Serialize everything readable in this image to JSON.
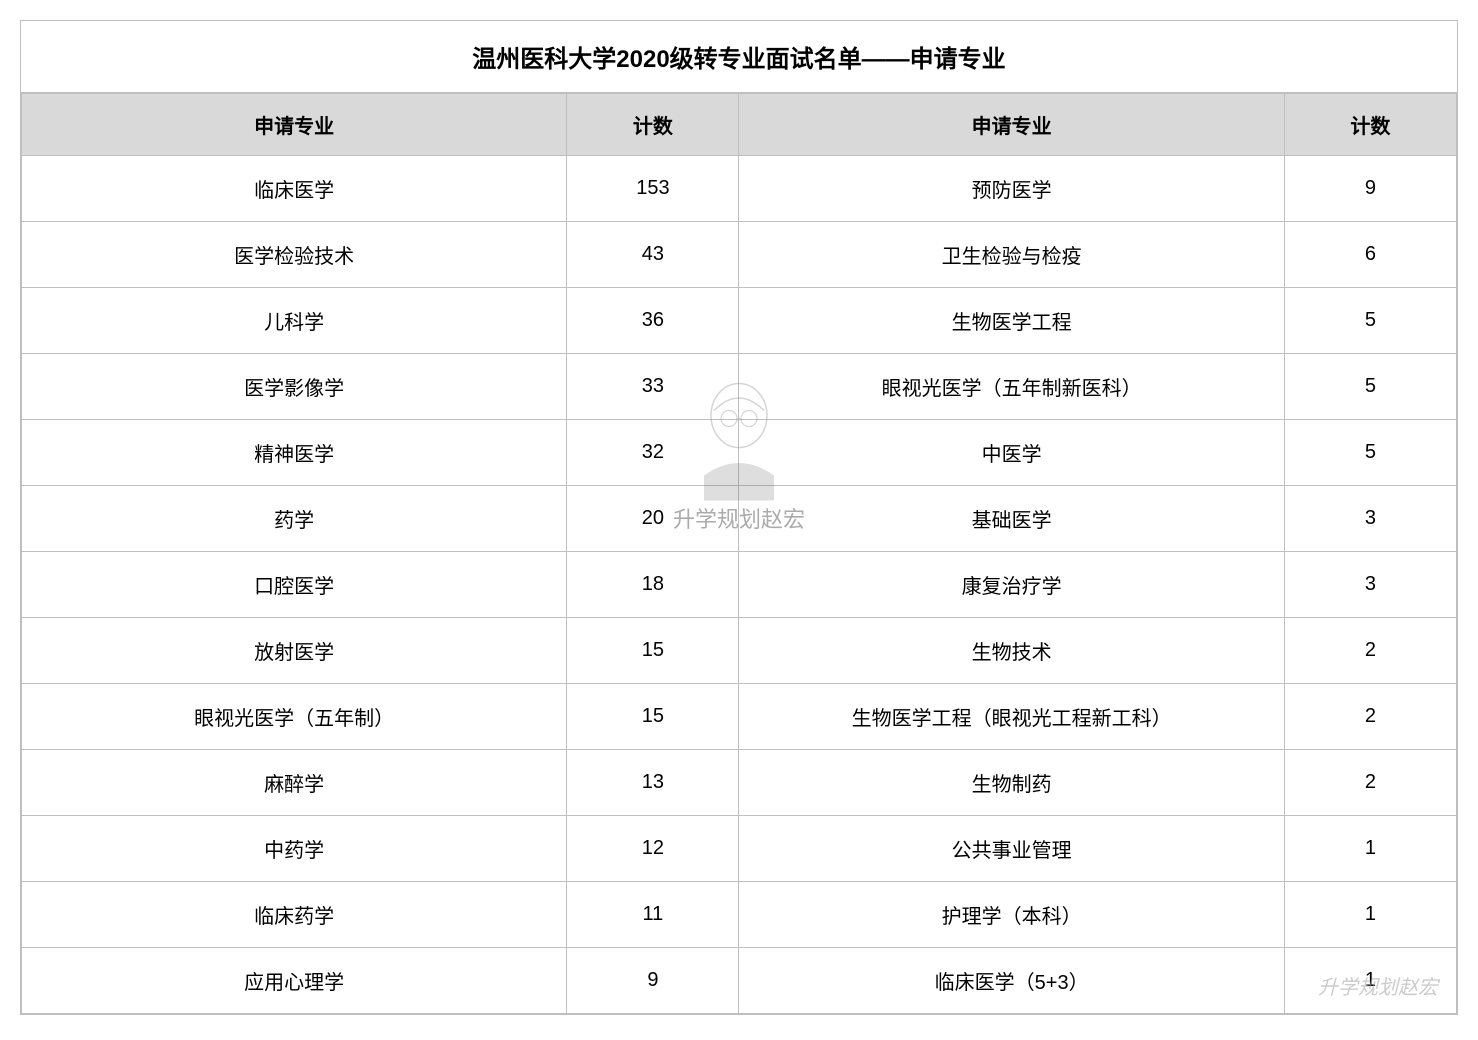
{
  "title": "温州医科大学2020级转专业面试名单——申请专业",
  "headers": {
    "major1": "申请专业",
    "count1": "计数",
    "major2": "申请专业",
    "count2": "计数"
  },
  "rows": [
    {
      "m1": "临床医学",
      "c1": "153",
      "m2": "预防医学",
      "c2": "9"
    },
    {
      "m1": "医学检验技术",
      "c1": "43",
      "m2": "卫生检验与检疫",
      "c2": "6"
    },
    {
      "m1": "儿科学",
      "c1": "36",
      "m2": "生物医学工程",
      "c2": "5"
    },
    {
      "m1": "医学影像学",
      "c1": "33",
      "m2": "眼视光医学（五年制新医科）",
      "c2": "5"
    },
    {
      "m1": "精神医学",
      "c1": "32",
      "m2": "中医学",
      "c2": "5"
    },
    {
      "m1": "药学",
      "c1": "20",
      "m2": "基础医学",
      "c2": "3"
    },
    {
      "m1": "口腔医学",
      "c1": "18",
      "m2": "康复治疗学",
      "c2": "3"
    },
    {
      "m1": "放射医学",
      "c1": "15",
      "m2": "生物技术",
      "c2": "2"
    },
    {
      "m1": "眼视光医学（五年制）",
      "c1": "15",
      "m2": "生物医学工程（眼视光工程新工科）",
      "c2": "2"
    },
    {
      "m1": "麻醉学",
      "c1": "13",
      "m2": "生物制药",
      "c2": "2"
    },
    {
      "m1": "中药学",
      "c1": "12",
      "m2": "公共事业管理",
      "c2": "1"
    },
    {
      "m1": "临床药学",
      "c1": "11",
      "m2": "护理学（本科）",
      "c2": "1"
    },
    {
      "m1": "应用心理学",
      "c1": "9",
      "m2": "临床医学（5+3）",
      "c2": "1"
    }
  ],
  "watermark_center": "升学规划赵宏",
  "watermark_bottom": "升学规划赵宏",
  "styling": {
    "header_bg": "#d9d9d9",
    "border_color": "#bfbfbf",
    "cell_bg": "#ffffff",
    "title_fontsize": 24,
    "header_fontsize": 20,
    "cell_fontsize": 20,
    "col_major_width_pct": 38,
    "col_count_width_pct": 12
  }
}
